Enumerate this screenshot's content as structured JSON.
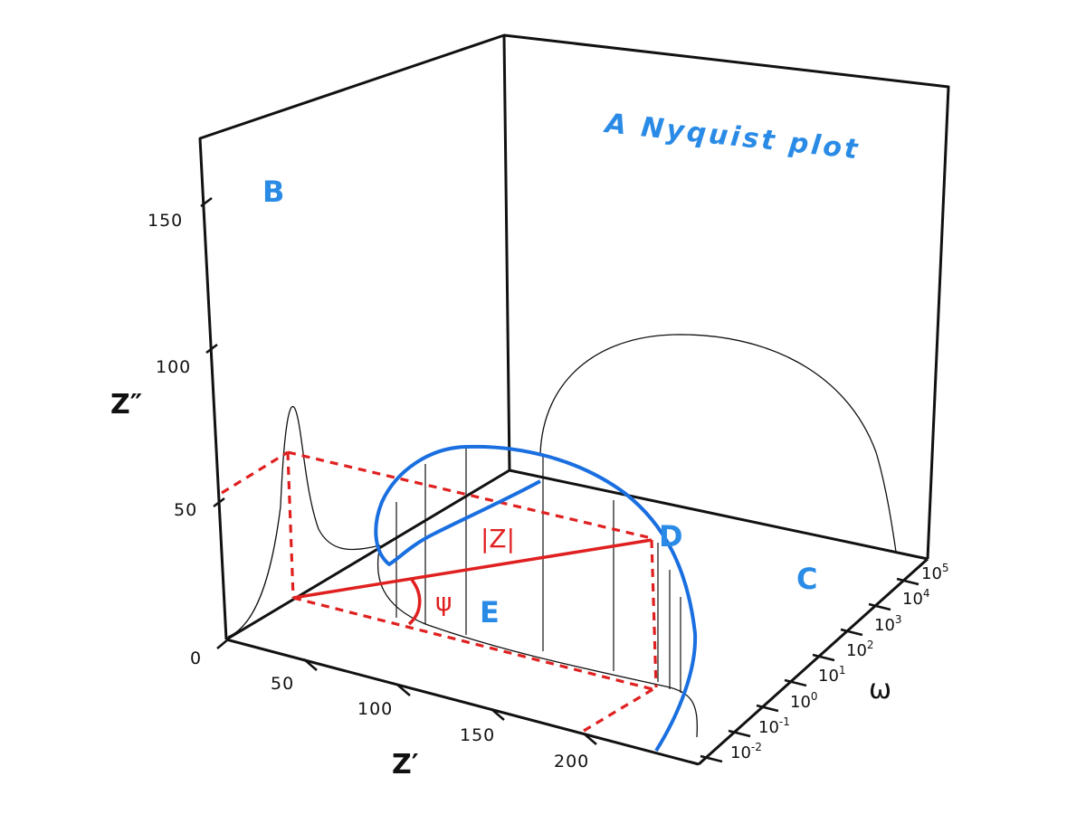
{
  "title": "A Nyquist plot",
  "axes": {
    "z_imag": {
      "label": "Z″",
      "ticks": [
        "0",
        "50",
        "100",
        "150"
      ]
    },
    "z_real": {
      "label": "Z′",
      "ticks": [
        "50",
        "100",
        "150",
        "200"
      ]
    },
    "omega": {
      "label": "ω",
      "ticks": [
        {
          "base": "10",
          "exp": "-2"
        },
        {
          "base": "10",
          "exp": "-1"
        },
        {
          "base": "10",
          "exp": "0"
        },
        {
          "base": "10",
          "exp": "1"
        },
        {
          "base": "10",
          "exp": "2"
        },
        {
          "base": "10",
          "exp": "3"
        },
        {
          "base": "10",
          "exp": "4"
        },
        {
          "base": "10",
          "exp": "5"
        }
      ]
    }
  },
  "labels": {
    "B": "B",
    "C": "C",
    "D": "D",
    "E": "E",
    "modulus": "|Z|",
    "phase": "ψ"
  },
  "colors": {
    "projection": "#2a8be6",
    "vector": "#e02020",
    "frame": "#111111"
  }
}
